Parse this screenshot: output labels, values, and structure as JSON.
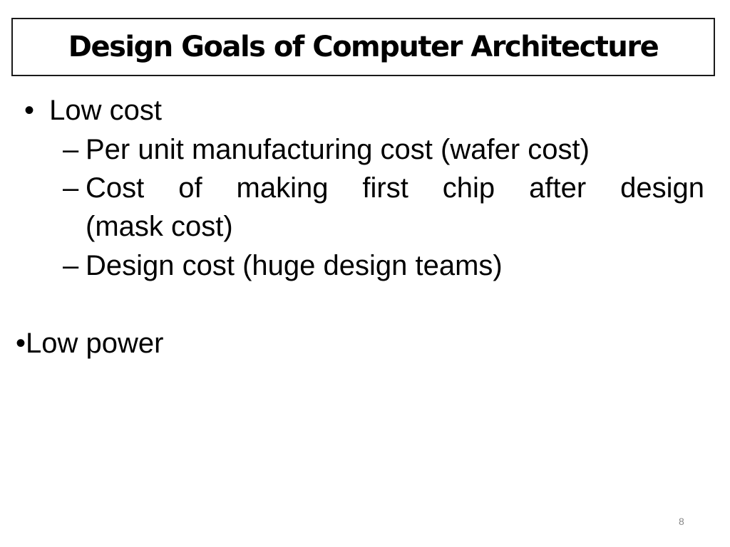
{
  "slide": {
    "title": "Design Goals of Computer Architecture",
    "bullets": [
      {
        "marker": "•",
        "text": "Low cost",
        "sub_items": [
          {
            "marker": "–",
            "text": "Per unit manufacturing cost (wafer cost)"
          },
          {
            "marker": "–",
            "text": "Cost of making first chip after design",
            "continuation": "(mask cost)"
          },
          {
            "marker": "–",
            "text": "Design cost (huge design teams)"
          }
        ]
      },
      {
        "marker": "•",
        "text": "Low power"
      }
    ],
    "page_number": "8"
  }
}
